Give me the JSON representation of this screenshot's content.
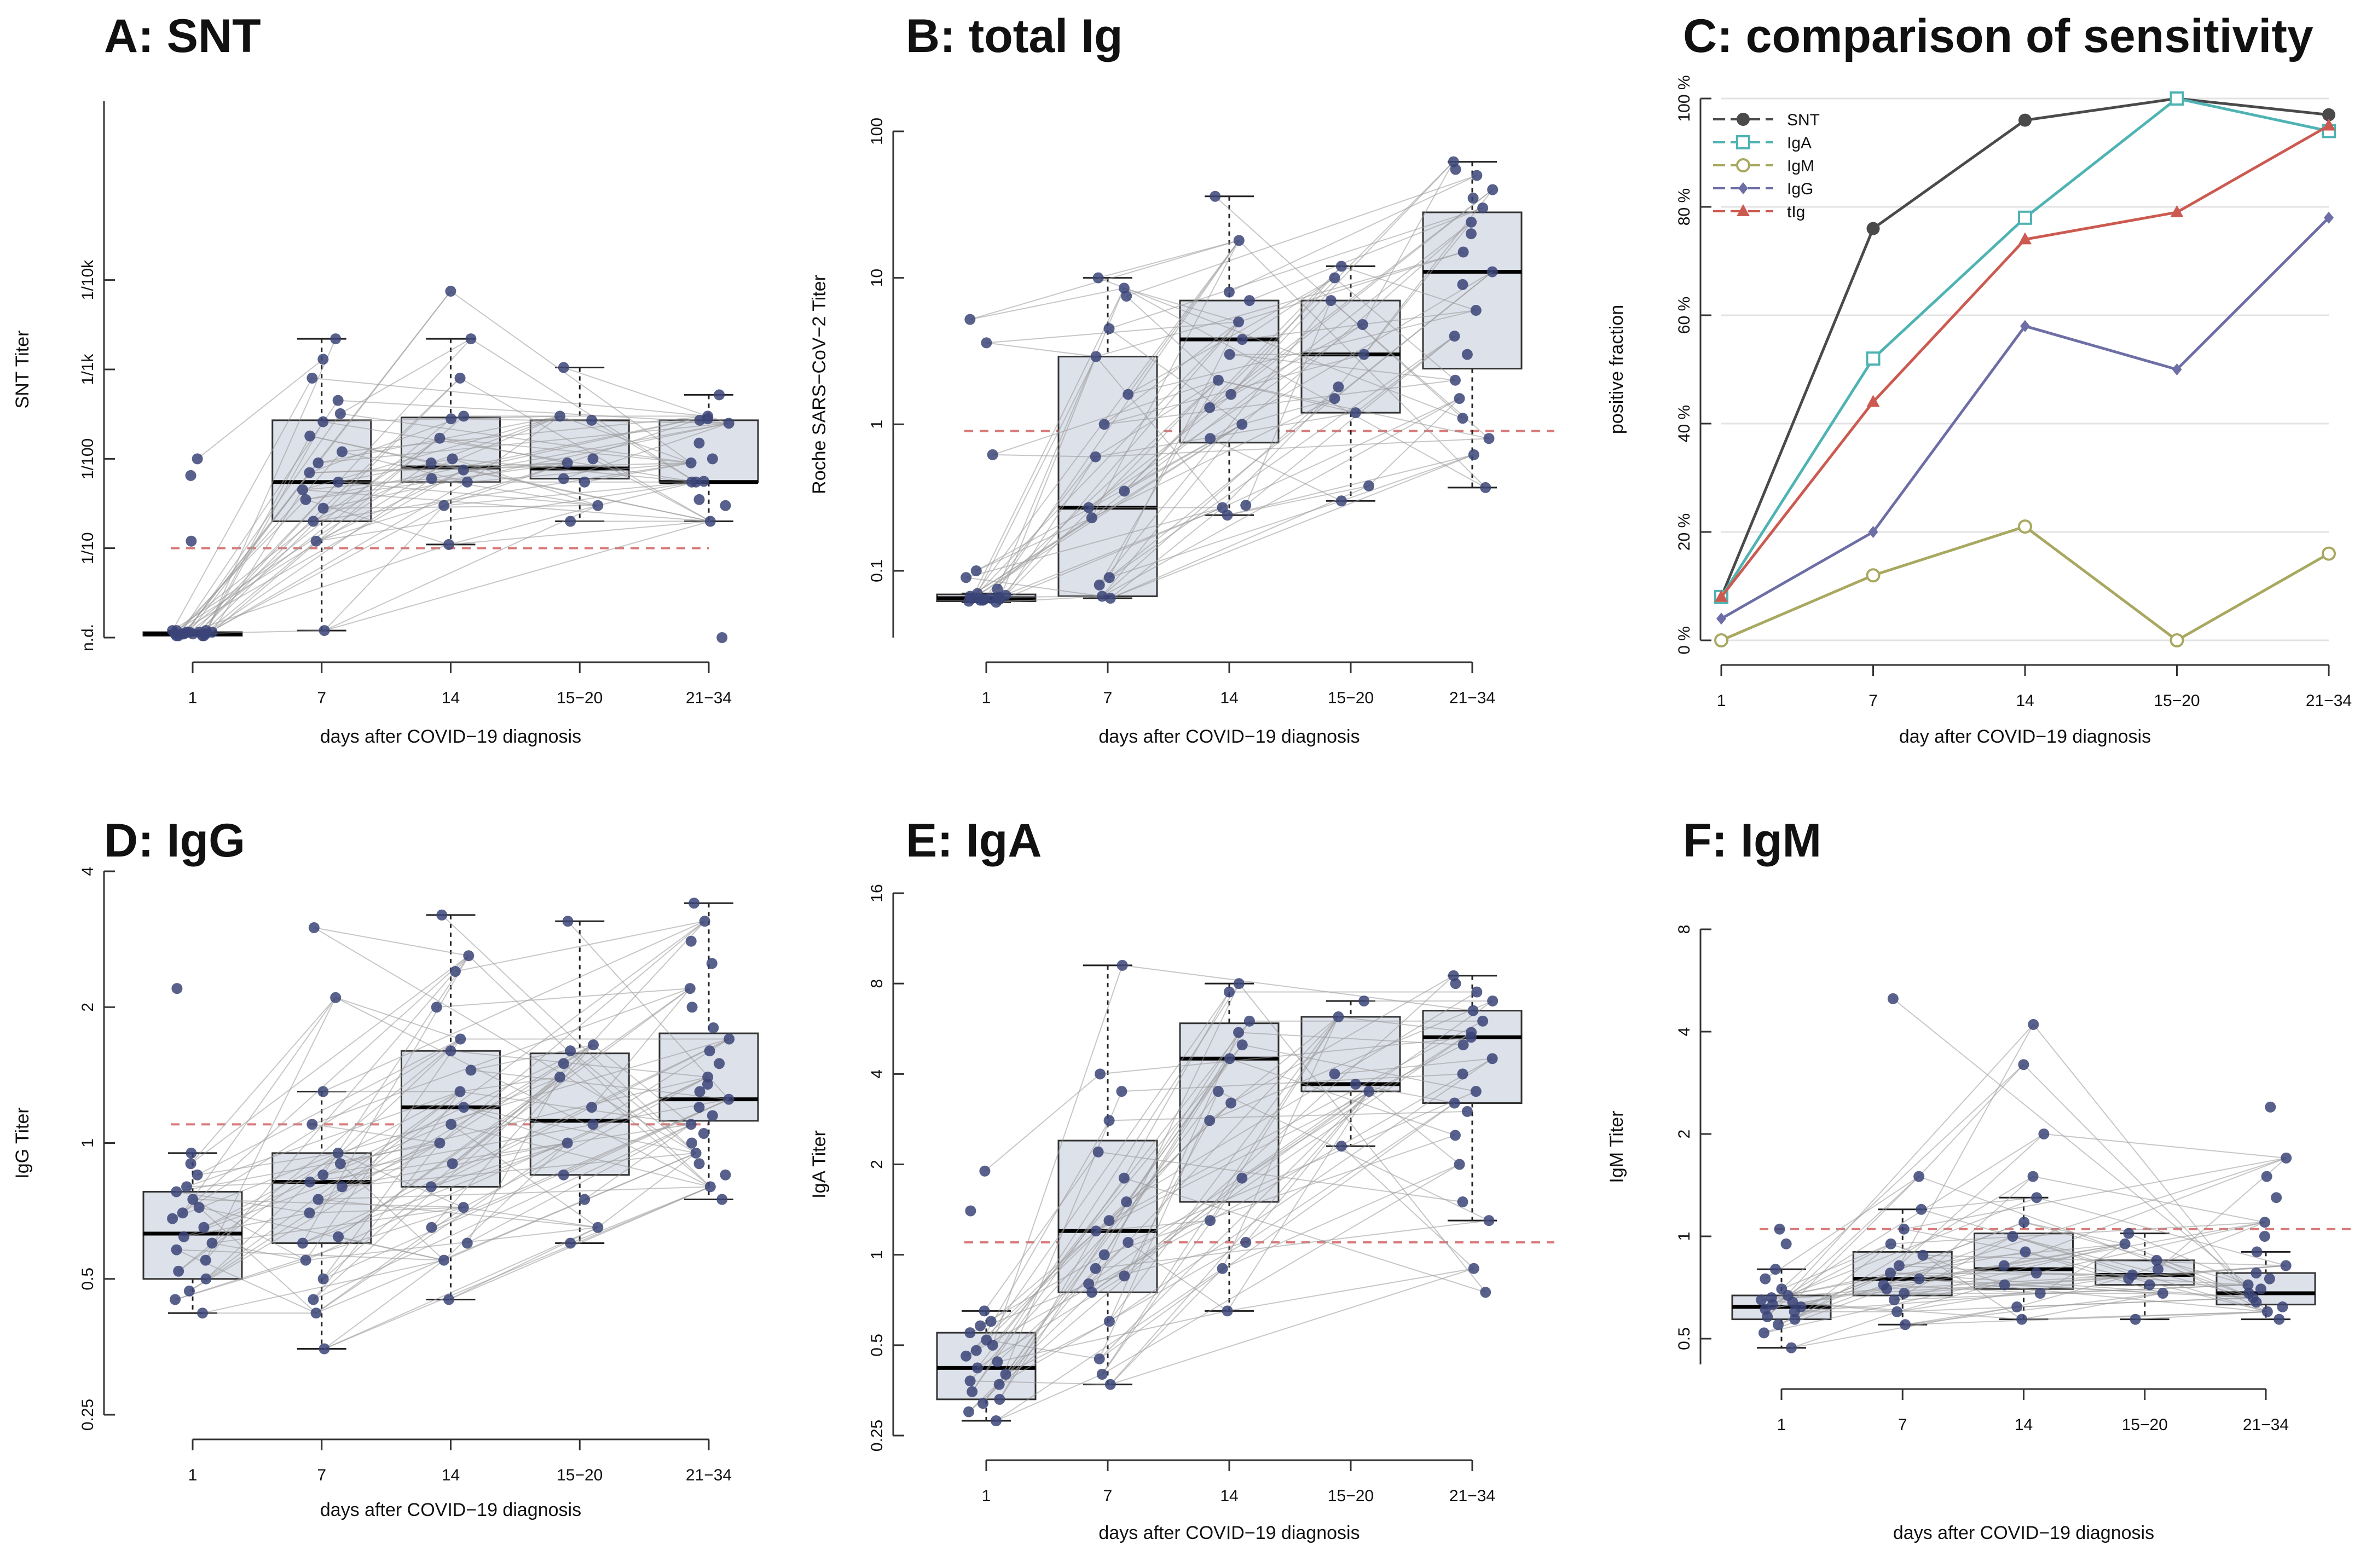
{
  "figure": {
    "ref_line_color": "#d97a7a",
    "box_fill": "#dde1ea",
    "point_color": "#3b4478",
    "connector_color": "#9a9a9a"
  },
  "chart_data": [
    {
      "id": "A",
      "type": "box",
      "title": "A: SNT",
      "xlabel": "days after COVID−19 diagnosis",
      "ylabel": "SNT Titer",
      "categories": [
        "1",
        "7",
        "14",
        "15−20",
        "21−34"
      ],
      "yscale": "log",
      "ylim": [
        0.01,
        10000
      ],
      "yticks": [
        {
          "v": 0.01,
          "label": "n.d."
        },
        {
          "v": 0.1,
          "label": "1/10"
        },
        {
          "v": 1,
          "label": "1/100"
        },
        {
          "v": 10,
          "label": "1/1k"
        },
        {
          "v": 100,
          "label": "1/10k"
        }
      ],
      "refline": 0.1,
      "boxes": [
        {
          "q1": 0.0105,
          "median": 0.011,
          "q3": 0.0115,
          "wlo": 0.0105,
          "whi": 0.012
        },
        {
          "q1": 0.2,
          "median": 0.55,
          "q3": 2.7,
          "wlo": 0.012,
          "whi": 22
        },
        {
          "q1": 0.55,
          "median": 0.8,
          "q3": 2.9,
          "wlo": 0.11,
          "whi": 22
        },
        {
          "q1": 0.6,
          "median": 0.78,
          "q3": 2.7,
          "wlo": 0.2,
          "whi": 10.5
        },
        {
          "q1": 0.55,
          "median": 0.55,
          "q3": 2.7,
          "wlo": 0.2,
          "whi": 5.2
        }
      ],
      "points": [
        [
          0.0105,
          0.011,
          0.0115,
          0.012,
          0.0105,
          0.011,
          0.012,
          0.0115,
          0.011,
          0.0105,
          0.012,
          0.011,
          0.0115,
          0.011,
          0.0105,
          0.0115,
          1.0,
          0.65,
          0.12
        ],
        [
          0.012,
          0.12,
          0.2,
          0.28,
          0.35,
          0.45,
          0.55,
          0.7,
          0.9,
          1.2,
          1.8,
          2.6,
          3.2,
          4.5,
          8,
          13,
          22
        ],
        [
          0.11,
          0.3,
          0.55,
          0.6,
          0.75,
          0.9,
          1.0,
          1.7,
          2.8,
          3.0,
          8,
          22,
          75
        ],
        [
          0.2,
          0.3,
          0.55,
          0.6,
          0.9,
          1.0,
          2.7,
          3.0,
          10.5
        ],
        [
          0.01,
          0.2,
          0.3,
          0.35,
          0.55,
          0.55,
          0.56,
          0.9,
          1.0,
          1.5,
          2.5,
          2.7,
          2.8,
          3.0,
          5.2
        ]
      ],
      "pairs": [
        [
          0,
          1
        ],
        [
          1,
          2
        ],
        [
          0,
          2
        ],
        [
          2,
          4
        ],
        [
          1,
          3
        ],
        [
          3,
          4
        ],
        [
          2,
          3
        ],
        [
          1,
          4
        ]
      ]
    },
    {
      "id": "B",
      "type": "box",
      "title": "B: total Ig",
      "xlabel": "days after COVID−19 diagnosis",
      "ylabel": "Roche SARS−CoV−2 Titer",
      "categories": [
        "1",
        "7",
        "14",
        "15−20",
        "21−34"
      ],
      "yscale": "log",
      "ylim": [
        0.035,
        100
      ],
      "yticks": [
        {
          "v": 0.1,
          "label": "0.1"
        },
        {
          "v": 1,
          "label": "1"
        },
        {
          "v": 10,
          "label": "10"
        },
        {
          "v": 100,
          "label": "100"
        }
      ],
      "refline": 0.9,
      "boxes": [
        {
          "q1": 0.062,
          "median": 0.065,
          "q3": 0.069,
          "wlo": 0.061,
          "whi": 0.07
        },
        {
          "q1": 0.067,
          "median": 0.27,
          "q3": 2.9,
          "wlo": 0.065,
          "whi": 10
        },
        {
          "q1": 0.75,
          "median": 3.8,
          "q3": 7.0,
          "wlo": 0.24,
          "whi": 36
        },
        {
          "q1": 1.2,
          "median": 3.0,
          "q3": 7.0,
          "wlo": 0.3,
          "whi": 12
        },
        {
          "q1": 2.4,
          "median": 11,
          "q3": 28,
          "wlo": 0.37,
          "whi": 62
        }
      ],
      "points": [
        [
          0.061,
          0.062,
          0.063,
          0.064,
          0.065,
          0.066,
          0.067,
          0.068,
          0.07,
          0.075,
          0.09,
          0.1,
          0.62,
          3.6,
          5.2,
          0.063,
          0.065,
          0.064
        ],
        [
          0.065,
          0.067,
          0.08,
          0.09,
          0.23,
          0.27,
          0.35,
          0.6,
          1.0,
          1.6,
          2.9,
          4.5,
          7.5,
          8.5,
          10
        ],
        [
          0.24,
          0.27,
          0.28,
          0.8,
          1.0,
          1.3,
          1.6,
          2.0,
          3.0,
          3.8,
          5.0,
          7.0,
          8.0,
          18,
          36
        ],
        [
          0.3,
          0.38,
          1.2,
          1.5,
          1.8,
          3.0,
          4.8,
          7.0,
          10,
          12
        ],
        [
          0.37,
          0.62,
          0.8,
          1.1,
          1.5,
          2.0,
          3.0,
          4.0,
          6.0,
          9.0,
          11,
          15,
          20,
          24,
          30,
          35,
          40,
          50,
          55,
          62
        ]
      ],
      "pairs": [
        [
          0,
          1
        ],
        [
          1,
          2
        ],
        [
          0,
          2
        ],
        [
          2,
          4
        ],
        [
          1,
          3
        ],
        [
          3,
          4
        ],
        [
          2,
          3
        ],
        [
          1,
          4
        ]
      ]
    },
    {
      "id": "C",
      "type": "line",
      "title": "C: comparison of sensitivity",
      "xlabel": "day after COVID−19 diagnosis",
      "ylabel": "positive fraction",
      "categories": [
        "1",
        "7",
        "14",
        "15−20",
        "21−34"
      ],
      "ylim": [
        0,
        100
      ],
      "yticks": [
        {
          "v": 0,
          "label": "0 %"
        },
        {
          "v": 20,
          "label": "20 %"
        },
        {
          "v": 40,
          "label": "40 %"
        },
        {
          "v": 60,
          "label": "60 %"
        },
        {
          "v": 80,
          "label": "80 %"
        },
        {
          "v": 100,
          "label": "100 %"
        }
      ],
      "grid": true,
      "legend_position": "top-left",
      "series": [
        {
          "name": "SNT",
          "color": "#4a4a4a",
          "marker": "filled-circle",
          "values": [
            8,
            76,
            96,
            100,
            97
          ]
        },
        {
          "name": "IgA",
          "color": "#4fb3b3",
          "marker": "open-square",
          "values": [
            8,
            52,
            78,
            100,
            94
          ]
        },
        {
          "name": "IgM",
          "color": "#a8a860",
          "marker": "open-circle",
          "values": [
            0,
            12,
            21,
            0,
            16
          ]
        },
        {
          "name": "IgG",
          "color": "#6e6ea6",
          "marker": "diamond",
          "values": [
            4,
            20,
            58,
            50,
            78
          ]
        },
        {
          "name": "tIg",
          "color": "#cc5a50",
          "marker": "triangle",
          "values": [
            8,
            44,
            74,
            79,
            95
          ]
        }
      ]
    },
    {
      "id": "D",
      "type": "box",
      "title": "D: IgG",
      "xlabel": "days after COVID−19 diagnosis",
      "ylabel": "IgG Titer",
      "categories": [
        "1",
        "7",
        "14",
        "15−20",
        "21−34"
      ],
      "yscale": "log",
      "ylim": [
        0.25,
        4
      ],
      "yticks": [
        {
          "v": 0.25,
          "label": "0.25"
        },
        {
          "v": 0.5,
          "label": "0.5"
        },
        {
          "v": 1,
          "label": "1"
        },
        {
          "v": 2,
          "label": "2"
        },
        {
          "v": 4,
          "label": "4"
        }
      ],
      "refline": 1.1,
      "boxes": [
        {
          "q1": 0.5,
          "median": 0.63,
          "q3": 0.78,
          "wlo": 0.42,
          "whi": 0.95
        },
        {
          "q1": 0.6,
          "median": 0.82,
          "q3": 0.95,
          "wlo": 0.35,
          "whi": 1.3
        },
        {
          "q1": 0.8,
          "median": 1.2,
          "q3": 1.6,
          "wlo": 0.45,
          "whi": 3.2
        },
        {
          "q1": 0.85,
          "median": 1.12,
          "q3": 1.58,
          "wlo": 0.6,
          "whi": 3.1
        },
        {
          "q1": 1.12,
          "median": 1.25,
          "q3": 1.75,
          "wlo": 0.75,
          "whi": 3.4
        }
      ],
      "points": [
        [
          0.42,
          0.45,
          0.47,
          0.5,
          0.52,
          0.55,
          0.58,
          0.6,
          0.62,
          0.65,
          0.68,
          0.7,
          0.72,
          0.75,
          0.78,
          0.8,
          0.85,
          0.9,
          0.95,
          2.2
        ],
        [
          0.35,
          0.42,
          0.45,
          0.5,
          0.55,
          0.6,
          0.62,
          0.7,
          0.75,
          0.8,
          0.82,
          0.85,
          0.9,
          0.95,
          1.1,
          1.3,
          2.1,
          3.0
        ],
        [
          0.45,
          0.55,
          0.6,
          0.65,
          0.72,
          0.8,
          0.9,
          1.0,
          1.1,
          1.2,
          1.3,
          1.45,
          1.6,
          1.7,
          2.0,
          2.4,
          2.6,
          3.2
        ],
        [
          0.6,
          0.65,
          0.75,
          0.85,
          1.0,
          1.1,
          1.2,
          1.4,
          1.5,
          1.6,
          1.65,
          3.1
        ],
        [
          0.75,
          0.8,
          0.85,
          0.9,
          0.95,
          1.0,
          1.05,
          1.1,
          1.15,
          1.2,
          1.25,
          1.3,
          1.35,
          1.4,
          1.5,
          1.6,
          1.7,
          1.8,
          2.0,
          2.2,
          2.5,
          2.8,
          3.1,
          3.4
        ]
      ],
      "pairs": [
        [
          0,
          1
        ],
        [
          1,
          2
        ],
        [
          0,
          2
        ],
        [
          2,
          4
        ],
        [
          1,
          3
        ],
        [
          3,
          4
        ],
        [
          2,
          3
        ],
        [
          1,
          4
        ]
      ]
    },
    {
      "id": "E",
      "type": "box",
      "title": "E: IgA",
      "xlabel": "days after COVID−19 diagnosis",
      "ylabel": "IgA Titer",
      "categories": [
        "1",
        "7",
        "14",
        "15−20",
        "21−34"
      ],
      "yscale": "log",
      "ylim": [
        0.25,
        16
      ],
      "yticks": [
        {
          "v": 0.25,
          "label": "0.25"
        },
        {
          "v": 0.5,
          "label": "0.5"
        },
        {
          "v": 1,
          "label": "1"
        },
        {
          "v": 2,
          "label": "2"
        },
        {
          "v": 4,
          "label": "4"
        },
        {
          "v": 8,
          "label": "8"
        },
        {
          "v": 16,
          "label": "16"
        }
      ],
      "refline": 1.1,
      "boxes": [
        {
          "q1": 0.33,
          "median": 0.42,
          "q3": 0.55,
          "wlo": 0.28,
          "whi": 0.65
        },
        {
          "q1": 0.75,
          "median": 1.2,
          "q3": 2.4,
          "wlo": 0.37,
          "whi": 9.2
        },
        {
          "q1": 1.5,
          "median": 4.5,
          "q3": 5.9,
          "wlo": 0.65,
          "whi": 8.0
        },
        {
          "q1": 3.5,
          "median": 3.7,
          "q3": 6.2,
          "wlo": 2.3,
          "whi": 7.0
        },
        {
          "q1": 3.2,
          "median": 5.3,
          "q3": 6.5,
          "wlo": 1.3,
          "whi": 8.5
        }
      ],
      "points": [
        [
          0.28,
          0.3,
          0.32,
          0.33,
          0.35,
          0.37,
          0.38,
          0.4,
          0.42,
          0.44,
          0.46,
          0.48,
          0.5,
          0.52,
          0.55,
          0.58,
          0.6,
          0.65,
          1.9,
          1.4
        ],
        [
          0.37,
          0.4,
          0.45,
          0.6,
          0.75,
          0.8,
          0.85,
          0.9,
          1.0,
          1.1,
          1.2,
          1.3,
          1.5,
          1.8,
          2.2,
          2.8,
          3.5,
          4.0,
          9.2
        ],
        [
          0.65,
          0.9,
          1.1,
          1.3,
          1.8,
          2.8,
          3.2,
          3.5,
          4.5,
          5.0,
          5.5,
          6.0,
          7.5,
          8.0
        ],
        [
          2.3,
          3.5,
          3.7,
          4.0,
          6.2,
          7.0
        ],
        [
          0.75,
          0.9,
          1.3,
          1.5,
          2.0,
          2.5,
          3.0,
          3.2,
          3.5,
          4.0,
          4.5,
          5.0,
          5.3,
          5.5,
          6.0,
          6.5,
          7.0,
          7.5,
          8.0,
          8.5
        ]
      ],
      "pairs": [
        [
          0,
          1
        ],
        [
          1,
          2
        ],
        [
          0,
          2
        ],
        [
          2,
          4
        ],
        [
          1,
          3
        ],
        [
          3,
          4
        ],
        [
          2,
          3
        ],
        [
          1,
          4
        ]
      ]
    },
    {
      "id": "F",
      "type": "box",
      "title": "F: IgM",
      "xlabel": "days after COVID−19 diagnosis",
      "ylabel": "IgM Titer",
      "categories": [
        "1",
        "7",
        "14",
        "15−20",
        "21−34"
      ],
      "yscale": "log",
      "ylim": [
        0.42,
        8
      ],
      "yticks": [
        {
          "v": 0.5,
          "label": "0.5"
        },
        {
          "v": 1,
          "label": "1"
        },
        {
          "v": 2,
          "label": "2"
        },
        {
          "v": 4,
          "label": "4"
        },
        {
          "v": 8,
          "label": "8"
        }
      ],
      "refline": 1.05,
      "boxes": [
        {
          "q1": 0.57,
          "median": 0.62,
          "q3": 0.67,
          "wlo": 0.47,
          "whi": 0.8
        },
        {
          "q1": 0.67,
          "median": 0.75,
          "q3": 0.9,
          "wlo": 0.55,
          "whi": 1.2
        },
        {
          "q1": 0.7,
          "median": 0.8,
          "q3": 1.02,
          "wlo": 0.57,
          "whi": 1.3
        },
        {
          "q1": 0.72,
          "median": 0.77,
          "q3": 0.85,
          "wlo": 0.57,
          "whi": 1.02
        },
        {
          "q1": 0.63,
          "median": 0.68,
          "q3": 0.78,
          "wlo": 0.57,
          "whi": 0.9
        }
      ],
      "points": [
        [
          0.47,
          0.52,
          0.55,
          0.57,
          0.58,
          0.6,
          0.61,
          0.62,
          0.63,
          0.64,
          0.65,
          0.66,
          0.67,
          0.7,
          0.75,
          0.8,
          0.95,
          1.05
        ],
        [
          0.55,
          0.6,
          0.65,
          0.68,
          0.7,
          0.72,
          0.75,
          0.78,
          0.82,
          0.88,
          0.95,
          1.05,
          1.2,
          1.5,
          5.0
        ],
        [
          0.57,
          0.62,
          0.68,
          0.72,
          0.78,
          0.82,
          0.9,
          1.0,
          1.1,
          1.3,
          1.5,
          2.0,
          3.2,
          4.2
        ],
        [
          0.57,
          0.68,
          0.72,
          0.75,
          0.77,
          0.8,
          0.85,
          0.95,
          1.02
        ],
        [
          0.57,
          0.6,
          0.62,
          0.64,
          0.66,
          0.68,
          0.7,
          0.72,
          0.75,
          0.78,
          0.82,
          0.9,
          1.0,
          1.1,
          1.3,
          1.5,
          1.7,
          2.4
        ]
      ],
      "pairs": [
        [
          0,
          1
        ],
        [
          1,
          2
        ],
        [
          0,
          2
        ],
        [
          2,
          4
        ],
        [
          1,
          3
        ],
        [
          3,
          4
        ],
        [
          2,
          3
        ],
        [
          1,
          4
        ]
      ]
    }
  ]
}
